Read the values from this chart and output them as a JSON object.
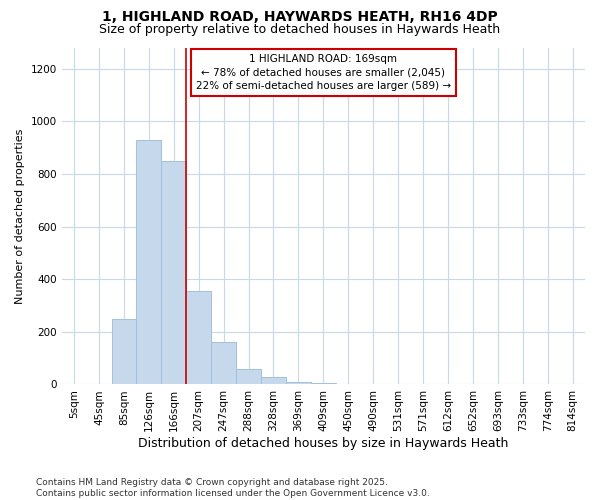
{
  "title_line1": "1, HIGHLAND ROAD, HAYWARDS HEATH, RH16 4DP",
  "title_line2": "Size of property relative to detached houses in Haywards Heath",
  "xlabel": "Distribution of detached houses by size in Haywards Heath",
  "ylabel": "Number of detached properties",
  "footnote": "Contains HM Land Registry data © Crown copyright and database right 2025.\nContains public sector information licensed under the Open Government Licence v3.0.",
  "bins": [
    "5sqm",
    "45sqm",
    "85sqm",
    "126sqm",
    "166sqm",
    "207sqm",
    "247sqm",
    "288sqm",
    "328sqm",
    "369sqm",
    "409sqm",
    "450sqm",
    "490sqm",
    "531sqm",
    "571sqm",
    "612sqm",
    "652sqm",
    "693sqm",
    "733sqm",
    "774sqm",
    "814sqm"
  ],
  "values": [
    0,
    0,
    250,
    930,
    850,
    355,
    160,
    60,
    28,
    10,
    5,
    0,
    0,
    0,
    0,
    0,
    0,
    3,
    0,
    0,
    0
  ],
  "bar_color": "#c6d9ec",
  "bar_edge_color": "#a0c0dc",
  "vline_x_index": 4,
  "vline_color": "#cc0000",
  "annotation_text": "1 HIGHLAND ROAD: 169sqm\n← 78% of detached houses are smaller (2,045)\n22% of semi-detached houses are larger (589) →",
  "annotation_box_color": "#ffffff",
  "annotation_box_edge": "#cc0000",
  "ylim": [
    0,
    1280
  ],
  "yticks": [
    0,
    200,
    400,
    600,
    800,
    1000,
    1200
  ],
  "bg_color": "#ffffff",
  "plot_bg_color": "#ffffff",
  "grid_color": "#c8d8e8",
  "title1_fontsize": 10,
  "title2_fontsize": 9,
  "xlabel_fontsize": 9,
  "ylabel_fontsize": 8,
  "tick_fontsize": 7.5,
  "annot_fontsize": 7.5,
  "footnote_fontsize": 6.5
}
